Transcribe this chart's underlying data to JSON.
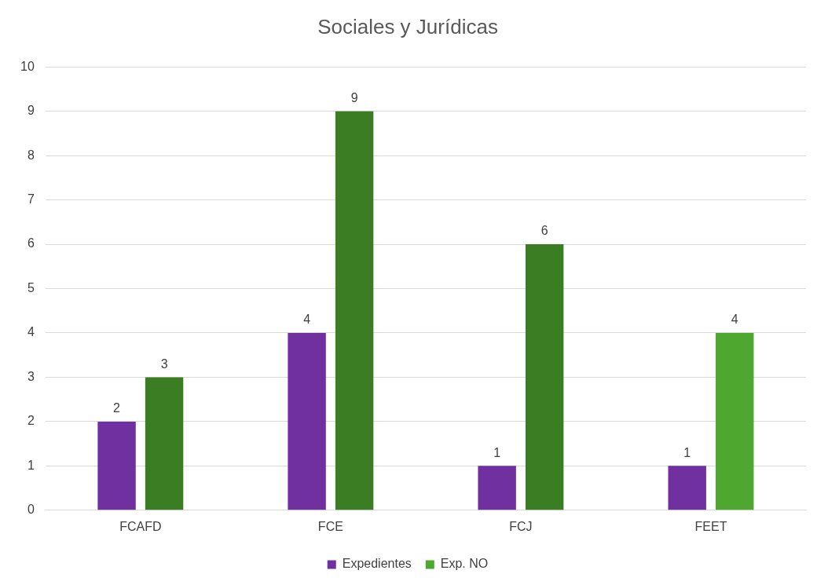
{
  "chart_data": {
    "type": "bar",
    "title": "Sociales y Jurídicas",
    "categories": [
      "FCAFD",
      "FCE",
      "FCJ",
      "FEET"
    ],
    "series": [
      {
        "name": "Expedientes",
        "color": "#7030a0",
        "values": [
          2,
          4,
          1,
          1
        ]
      },
      {
        "name": "Exp. NO",
        "color": "#4ea72e",
        "colors": [
          "#3a7d22",
          "#3a7d22",
          "#3a7d22",
          "#4ea72e"
        ],
        "values": [
          3,
          9,
          6,
          4
        ]
      }
    ],
    "ylim": [
      0,
      10
    ],
    "yticks": [
      0,
      1,
      2,
      3,
      4,
      5,
      6,
      7,
      8,
      9,
      10
    ],
    "grid": "y",
    "legend": "bottom",
    "data_labels": true
  }
}
